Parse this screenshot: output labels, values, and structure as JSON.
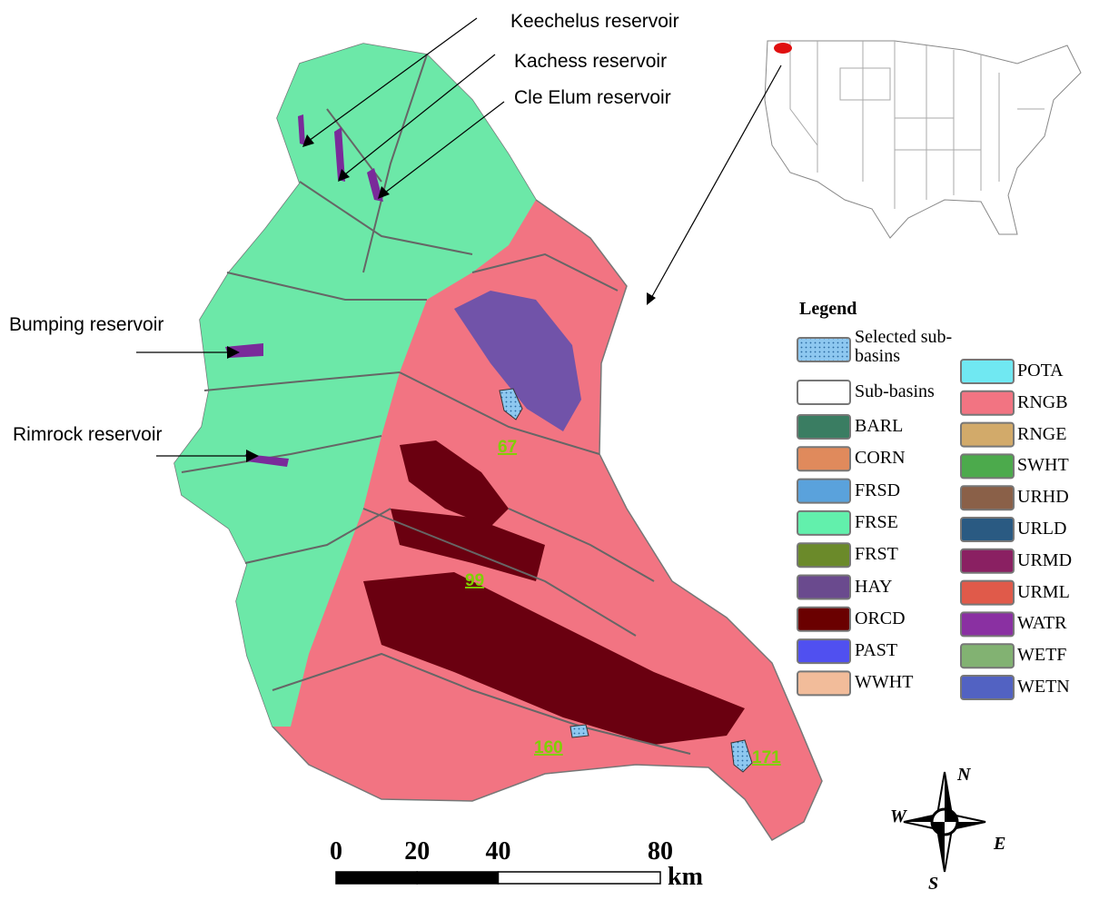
{
  "map": {
    "reservoirs": [
      "Keechelus  reservoir",
      "Kachess  reservoir",
      "Cle Elum  reservoir",
      "Bumping  reservoir",
      "Rimrock  reservoir"
    ],
    "sub_basin_labels": [
      "67",
      "99",
      "160",
      "171"
    ],
    "legend": {
      "title": "Legend",
      "left": [
        {
          "name": "Selected sub-basins",
          "color": "#8ec8f0"
        },
        {
          "name": "Sub-basins",
          "color": "#ffffff"
        },
        {
          "name": "BARL",
          "color": "#3a7d62"
        },
        {
          "name": "CORN",
          "color": "#e08a5c"
        },
        {
          "name": "FRSD",
          "color": "#5aa2dc"
        },
        {
          "name": "FRSE",
          "color": "#62f0ac"
        },
        {
          "name": "FRST",
          "color": "#6b8a2a"
        },
        {
          "name": "HAY",
          "color": "#6a4a8e"
        },
        {
          "name": "ORCD",
          "color": "#6a0000"
        },
        {
          "name": "PAST",
          "color": "#5050f0"
        },
        {
          "name": "WWHT",
          "color": "#f2bc9a"
        }
      ],
      "right": [
        {
          "name": "POTA",
          "color": "#70e8f2"
        },
        {
          "name": "RNGB",
          "color": "#f27482"
        },
        {
          "name": "RNGE",
          "color": "#d2aa6a"
        },
        {
          "name": "SWHT",
          "color": "#4caa4c"
        },
        {
          "name": "URHD",
          "color": "#8a6048"
        },
        {
          "name": "URLD",
          "color": "#2a5a82"
        },
        {
          "name": "URMD",
          "color": "#8a2062"
        },
        {
          "name": "URML",
          "color": "#e05a4a"
        },
        {
          "name": "WATR",
          "color": "#8a30a2"
        },
        {
          "name": "WETF",
          "color": "#82b272"
        },
        {
          "name": "WETN",
          "color": "#5262c2"
        }
      ]
    },
    "scale": {
      "ticks": [
        0,
        20,
        40,
        80
      ],
      "unit": "km"
    },
    "compass": {
      "n": "N",
      "e": "E",
      "s": "S",
      "w": "W"
    }
  }
}
